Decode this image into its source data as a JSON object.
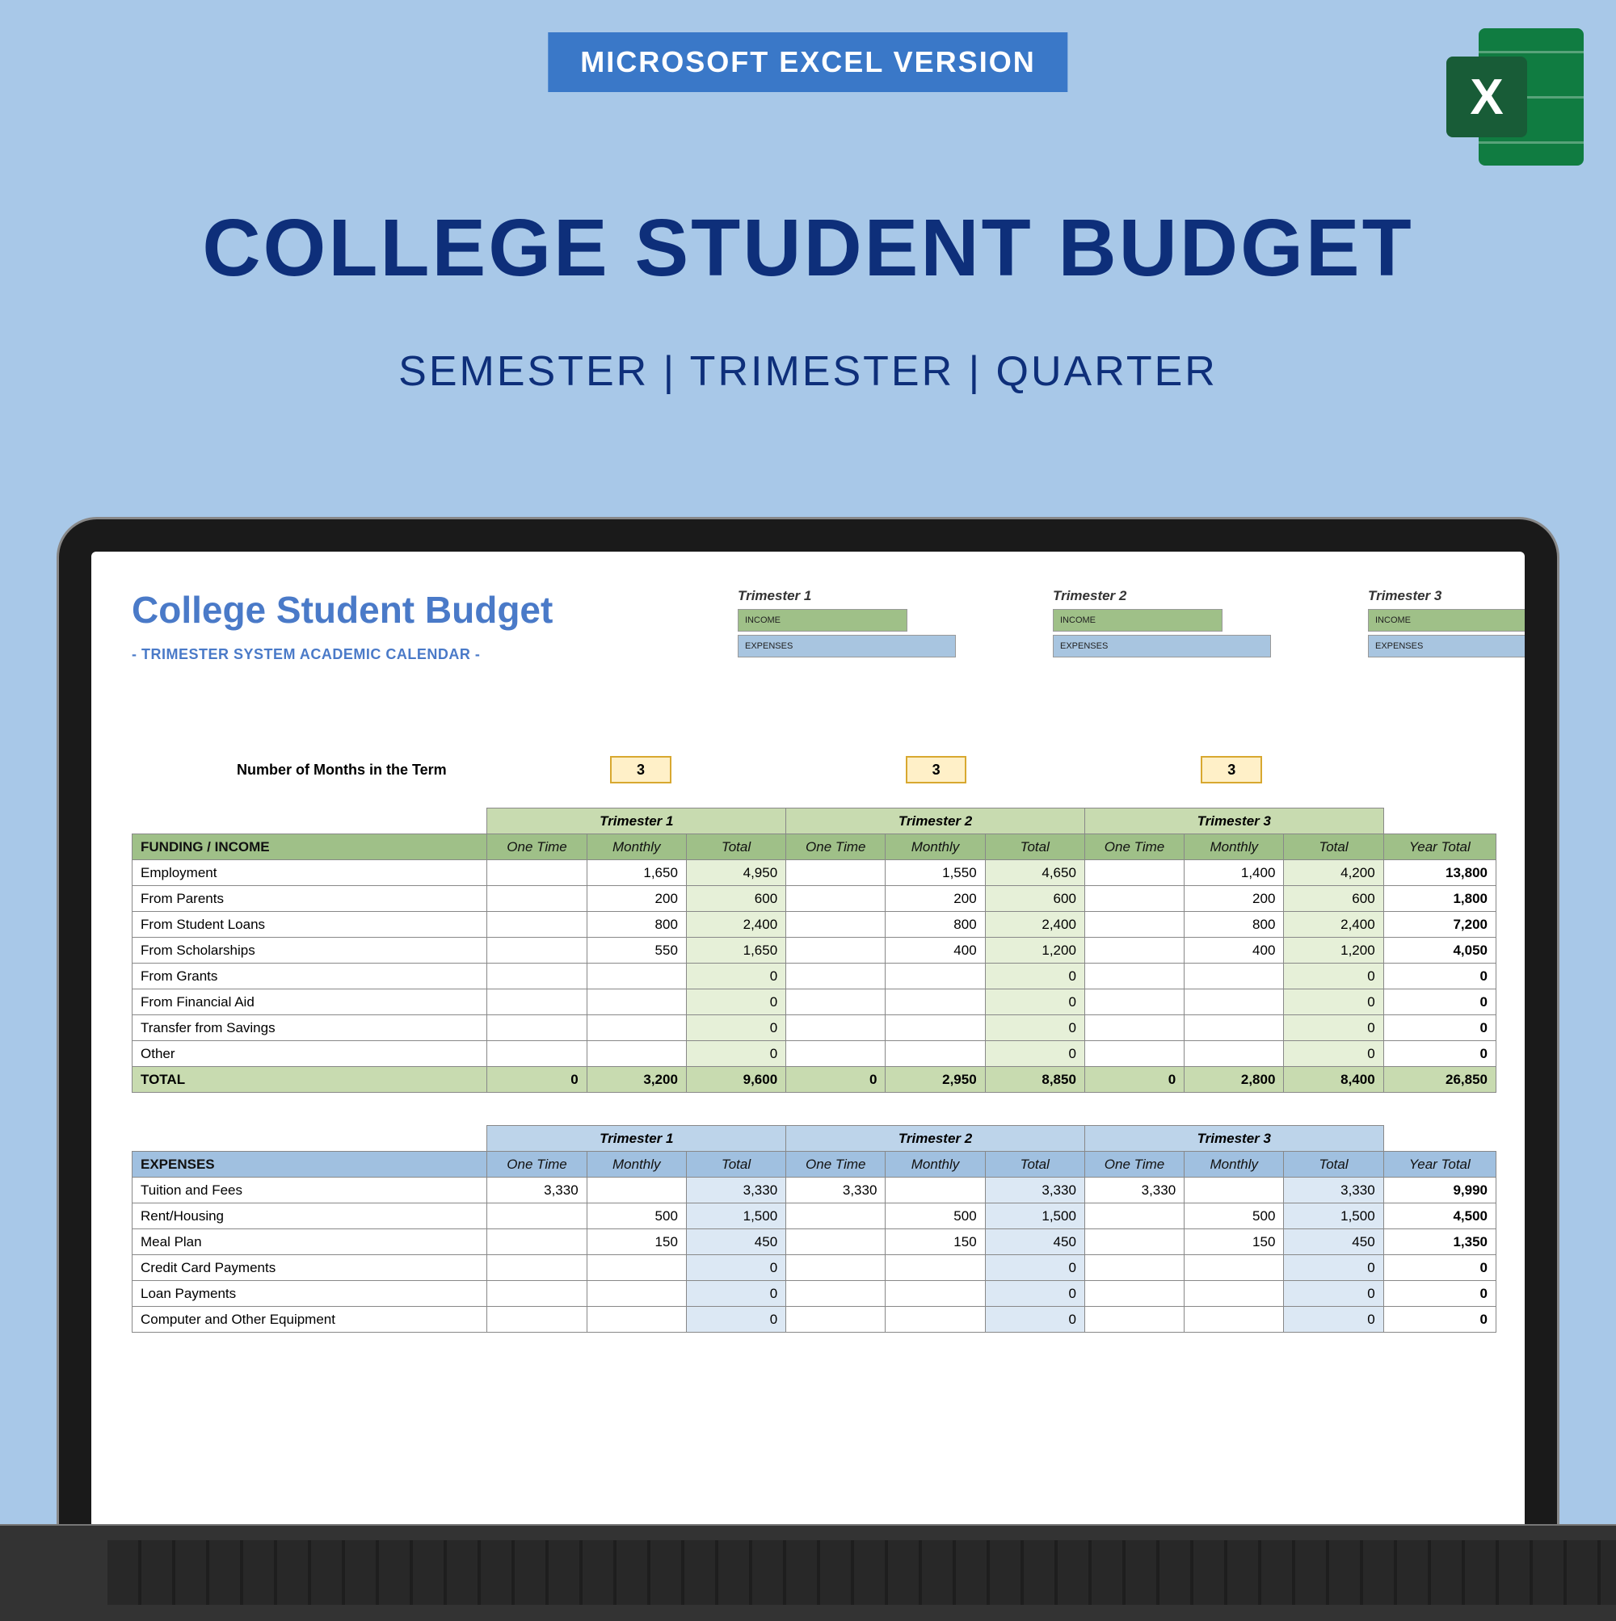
{
  "bannerText": "MICROSOFT EXCEL VERSION",
  "mainTitle": "COLLEGE STUDENT BUDGET",
  "subtitle": "SEMESTER  |  TRIMESTER | QUARTER",
  "excelLetter": "X",
  "sheet": {
    "title": "College Student Budget",
    "subtitle": "- TRIMESTER SYSTEM ACADEMIC CALENDAR -",
    "monthsLabel": "Number of Months in the Term",
    "termLabels": [
      "Trimester 1",
      "Trimester 2",
      "Trimester 3"
    ],
    "barLabels": {
      "income": "INCOME",
      "expenses": "EXPENSES"
    },
    "monthsValues": [
      "3",
      "3",
      "3"
    ],
    "subCols": [
      "One Time",
      "Monthly",
      "Total"
    ],
    "yearTotalLabel": "Year Total",
    "colors": {
      "incomeHeader": "#9fc088",
      "incomeLight": "#c8dbb0",
      "incomeTint": "#e6f0d8",
      "expenseHeader": "#a0c0e0",
      "expenseLight": "#bdd4ea",
      "expenseTint": "#dce8f4",
      "monthBox": "#fff0c8",
      "monthBorder": "#d8a830",
      "titleBlue": "#4a7ac8"
    },
    "income": {
      "header": "FUNDING / INCOME",
      "rows": [
        {
          "label": "Employment",
          "t1": [
            "",
            "1,650",
            "4,950"
          ],
          "t2": [
            "",
            "1,550",
            "4,650"
          ],
          "t3": [
            "",
            "1,400",
            "4,200"
          ],
          "yt": "13,800"
        },
        {
          "label": "From Parents",
          "t1": [
            "",
            "200",
            "600"
          ],
          "t2": [
            "",
            "200",
            "600"
          ],
          "t3": [
            "",
            "200",
            "600"
          ],
          "yt": "1,800"
        },
        {
          "label": "From Student Loans",
          "t1": [
            "",
            "800",
            "2,400"
          ],
          "t2": [
            "",
            "800",
            "2,400"
          ],
          "t3": [
            "",
            "800",
            "2,400"
          ],
          "yt": "7,200"
        },
        {
          "label": "From Scholarships",
          "t1": [
            "",
            "550",
            "1,650"
          ],
          "t2": [
            "",
            "400",
            "1,200"
          ],
          "t3": [
            "",
            "400",
            "1,200"
          ],
          "yt": "4,050"
        },
        {
          "label": "From Grants",
          "t1": [
            "",
            "",
            "0"
          ],
          "t2": [
            "",
            "",
            "0"
          ],
          "t3": [
            "",
            "",
            "0"
          ],
          "yt": "0"
        },
        {
          "label": "From Financial Aid",
          "t1": [
            "",
            "",
            "0"
          ],
          "t2": [
            "",
            "",
            "0"
          ],
          "t3": [
            "",
            "",
            "0"
          ],
          "yt": "0"
        },
        {
          "label": "Transfer from Savings",
          "t1": [
            "",
            "",
            "0"
          ],
          "t2": [
            "",
            "",
            "0"
          ],
          "t3": [
            "",
            "",
            "0"
          ],
          "yt": "0"
        },
        {
          "label": "Other",
          "t1": [
            "",
            "",
            "0"
          ],
          "t2": [
            "",
            "",
            "0"
          ],
          "t3": [
            "",
            "",
            "0"
          ],
          "yt": "0"
        }
      ],
      "total": {
        "label": "TOTAL",
        "t1": [
          "0",
          "3,200",
          "9,600"
        ],
        "t2": [
          "0",
          "2,950",
          "8,850"
        ],
        "t3": [
          "0",
          "2,800",
          "8,400"
        ],
        "yt": "26,850"
      }
    },
    "expenses": {
      "header": "EXPENSES",
      "rows": [
        {
          "label": "Tuition and Fees",
          "t1": [
            "3,330",
            "",
            "3,330"
          ],
          "t2": [
            "3,330",
            "",
            "3,330"
          ],
          "t3": [
            "3,330",
            "",
            "3,330"
          ],
          "yt": "9,990"
        },
        {
          "label": "Rent/Housing",
          "t1": [
            "",
            "500",
            "1,500"
          ],
          "t2": [
            "",
            "500",
            "1,500"
          ],
          "t3": [
            "",
            "500",
            "1,500"
          ],
          "yt": "4,500"
        },
        {
          "label": "Meal Plan",
          "t1": [
            "",
            "150",
            "450"
          ],
          "t2": [
            "",
            "150",
            "450"
          ],
          "t3": [
            "",
            "150",
            "450"
          ],
          "yt": "1,350"
        },
        {
          "label": "Credit Card Payments",
          "t1": [
            "",
            "",
            "0"
          ],
          "t2": [
            "",
            "",
            "0"
          ],
          "t3": [
            "",
            "",
            "0"
          ],
          "yt": "0"
        },
        {
          "label": "Loan Payments",
          "t1": [
            "",
            "",
            "0"
          ],
          "t2": [
            "",
            "",
            "0"
          ],
          "t3": [
            "",
            "",
            "0"
          ],
          "yt": "0"
        },
        {
          "label": "Computer and Other Equipment",
          "t1": [
            "",
            "",
            "0"
          ],
          "t2": [
            "",
            "",
            "0"
          ],
          "t3": [
            "",
            "",
            "0"
          ],
          "yt": "0"
        }
      ]
    }
  }
}
